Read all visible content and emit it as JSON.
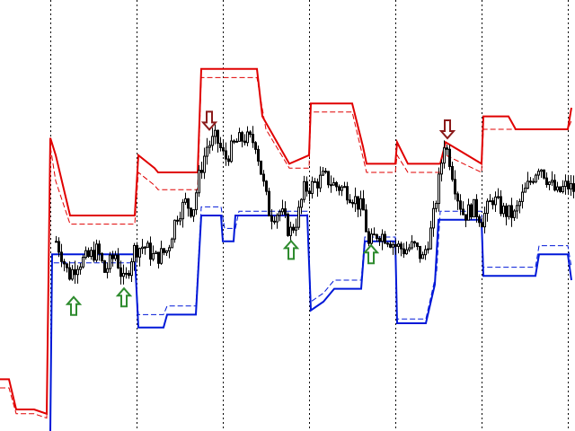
{
  "chart_data": {
    "type": "candlestick",
    "title": "",
    "xlabel": "",
    "ylabel": "",
    "grid": {
      "vertical": true,
      "horizontal": false
    },
    "ylim": [
      0,
      100
    ],
    "xlim": [
      0,
      640
    ],
    "colors": {
      "background": "#ffffff",
      "candles": "#000000",
      "upper_band": "#e00000",
      "lower_band": "#0018d8",
      "buy_arrow": "#2e8b2e",
      "sell_arrow": "#8b1a1a"
    },
    "vertical_separators_x": [
      56,
      152,
      248,
      344,
      440,
      536,
      632
    ],
    "series": [
      {
        "role": "upper-band",
        "values": [
          [
            0,
            12
          ],
          [
            10,
            12
          ],
          [
            18,
            5
          ],
          [
            38,
            5
          ],
          [
            52,
            4
          ],
          [
            56,
            68
          ],
          [
            62,
            64
          ],
          [
            78,
            50
          ],
          [
            150,
            50
          ],
          [
            154,
            64
          ],
          [
            172,
            61
          ],
          [
            176,
            60
          ],
          [
            220,
            60
          ],
          [
            224,
            84
          ],
          [
            250,
            84
          ],
          [
            286,
            84
          ],
          [
            292,
            73
          ],
          [
            322,
            62
          ],
          [
            344,
            64
          ],
          [
            346,
            76
          ],
          [
            392,
            76
          ],
          [
            404,
            66
          ],
          [
            408,
            62
          ],
          [
            440,
            62
          ],
          [
            442,
            67
          ],
          [
            454,
            62
          ],
          [
            490,
            62
          ],
          [
            496,
            67
          ],
          [
            536,
            62
          ],
          [
            538,
            73
          ],
          [
            566,
            73
          ],
          [
            574,
            70
          ],
          [
            600,
            70
          ],
          [
            632,
            70
          ],
          [
            636,
            75
          ]
        ]
      },
      {
        "role": "upper-band-dashed",
        "values": [
          [
            0,
            10
          ],
          [
            10,
            10
          ],
          [
            18,
            4
          ],
          [
            38,
            4
          ],
          [
            52,
            3
          ],
          [
            56,
            66
          ],
          [
            62,
            58
          ],
          [
            78,
            48
          ],
          [
            150,
            48
          ],
          [
            154,
            60
          ],
          [
            172,
            57
          ],
          [
            176,
            56
          ],
          [
            220,
            56
          ],
          [
            224,
            82
          ],
          [
            250,
            82
          ],
          [
            286,
            82
          ],
          [
            296,
            70
          ],
          [
            322,
            61
          ],
          [
            344,
            61
          ],
          [
            346,
            74
          ],
          [
            392,
            74
          ],
          [
            408,
            60
          ],
          [
            440,
            60
          ],
          [
            442,
            64
          ],
          [
            454,
            60
          ],
          [
            490,
            60
          ],
          [
            496,
            64
          ],
          [
            536,
            60
          ],
          [
            538,
            70
          ],
          [
            600,
            70
          ],
          [
            632,
            70
          ],
          [
            636,
            72
          ]
        ]
      },
      {
        "role": "lower-band",
        "values": [
          [
            56,
            0
          ],
          [
            58,
            41
          ],
          [
            80,
            41
          ],
          [
            150,
            41
          ],
          [
            154,
            24
          ],
          [
            182,
            24
          ],
          [
            186,
            27
          ],
          [
            218,
            27
          ],
          [
            224,
            50
          ],
          [
            246,
            50
          ],
          [
            248,
            44
          ],
          [
            260,
            44
          ],
          [
            262,
            50
          ],
          [
            290,
            50
          ],
          [
            342,
            50
          ],
          [
            346,
            28
          ],
          [
            360,
            30
          ],
          [
            372,
            33
          ],
          [
            402,
            33
          ],
          [
            406,
            44
          ],
          [
            440,
            44
          ],
          [
            442,
            25
          ],
          [
            474,
            25
          ],
          [
            484,
            34
          ],
          [
            488,
            49
          ],
          [
            536,
            49
          ],
          [
            538,
            36
          ],
          [
            596,
            36
          ],
          [
            600,
            41
          ],
          [
            632,
            41
          ],
          [
            636,
            35
          ]
        ]
      },
      {
        "role": "lower-band-dashed",
        "values": [
          [
            56,
            0
          ],
          [
            58,
            39
          ],
          [
            150,
            39
          ],
          [
            154,
            27
          ],
          [
            182,
            27
          ],
          [
            186,
            29
          ],
          [
            218,
            29
          ],
          [
            224,
            52
          ],
          [
            246,
            52
          ],
          [
            250,
            47
          ],
          [
            262,
            47
          ],
          [
            266,
            51
          ],
          [
            342,
            51
          ],
          [
            346,
            30
          ],
          [
            360,
            32
          ],
          [
            372,
            35
          ],
          [
            402,
            35
          ],
          [
            406,
            45
          ],
          [
            440,
            45
          ],
          [
            442,
            26
          ],
          [
            474,
            26
          ],
          [
            486,
            37
          ],
          [
            490,
            51
          ],
          [
            536,
            51
          ],
          [
            538,
            38
          ],
          [
            596,
            38
          ],
          [
            600,
            43
          ],
          [
            632,
            43
          ],
          [
            636,
            38
          ]
        ]
      }
    ],
    "signals": [
      {
        "type": "buy",
        "x": 82,
        "y": 29
      },
      {
        "type": "buy",
        "x": 138,
        "y": 31
      },
      {
        "type": "buy",
        "x": 324,
        "y": 42
      },
      {
        "type": "buy",
        "x": 413,
        "y": 41
      },
      {
        "type": "sell",
        "x": 233,
        "y": 72
      },
      {
        "type": "sell",
        "x": 498,
        "y": 70
      }
    ],
    "candle_anchors": [
      [
        62,
        44
      ],
      [
        68,
        41
      ],
      [
        76,
        36
      ],
      [
        86,
        39
      ],
      [
        96,
        40
      ],
      [
        108,
        42
      ],
      [
        116,
        37
      ],
      [
        128,
        41
      ],
      [
        138,
        34
      ],
      [
        148,
        42
      ],
      [
        160,
        43
      ],
      [
        172,
        40
      ],
      [
        186,
        42
      ],
      [
        196,
        50
      ],
      [
        206,
        53
      ],
      [
        214,
        51
      ],
      [
        222,
        60
      ],
      [
        230,
        66
      ],
      [
        240,
        68
      ],
      [
        250,
        63
      ],
      [
        262,
        67
      ],
      [
        272,
        68
      ],
      [
        284,
        67
      ],
      [
        292,
        58
      ],
      [
        300,
        50
      ],
      [
        312,
        51
      ],
      [
        322,
        46
      ],
      [
        330,
        49
      ],
      [
        338,
        56
      ],
      [
        348,
        57
      ],
      [
        360,
        59
      ],
      [
        372,
        57
      ],
      [
        384,
        56
      ],
      [
        394,
        54
      ],
      [
        404,
        51
      ],
      [
        410,
        43
      ],
      [
        420,
        46
      ],
      [
        430,
        45
      ],
      [
        440,
        43
      ],
      [
        450,
        42
      ],
      [
        460,
        43
      ],
      [
        470,
        40
      ],
      [
        480,
        47
      ],
      [
        488,
        58
      ],
      [
        494,
        67
      ],
      [
        500,
        63
      ],
      [
        508,
        55
      ],
      [
        516,
        50
      ],
      [
        526,
        52
      ],
      [
        536,
        49
      ],
      [
        548,
        54
      ],
      [
        560,
        51
      ],
      [
        572,
        50
      ],
      [
        580,
        54
      ],
      [
        590,
        58
      ],
      [
        600,
        62
      ],
      [
        610,
        58
      ],
      [
        620,
        55
      ],
      [
        630,
        57
      ],
      [
        638,
        56
      ]
    ]
  }
}
